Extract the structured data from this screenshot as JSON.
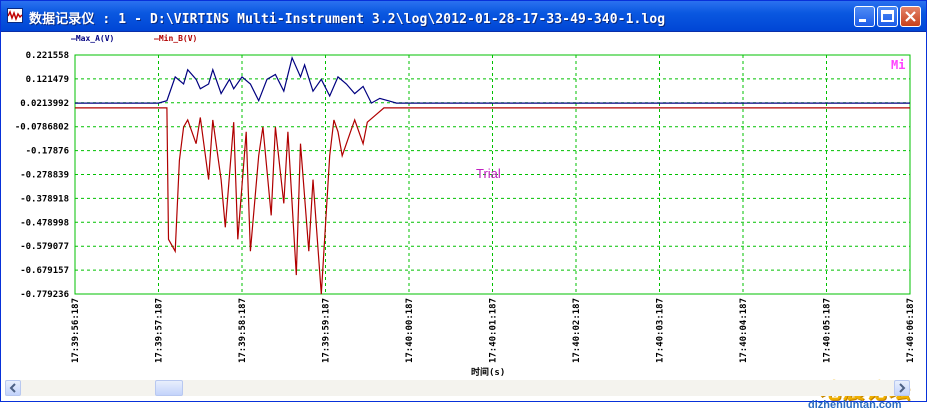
{
  "window": {
    "title": "数据记录仪 : 1 - D:\\VIRTINS Multi-Instrument 3.2\\log\\2012-01-28-17-33-49-340-1.log",
    "minimize_icon": "minimize-icon",
    "maximize_icon": "maximize-icon",
    "close_icon": "close-icon"
  },
  "legend": {
    "series_a": "—Max_A(V)",
    "series_b": "—Min_B(V)"
  },
  "plot": {
    "trial_text": "Trial",
    "corner_mark": "Mi",
    "xlabel": "时间(s)"
  },
  "watermark": {
    "text": "地震论坛",
    "url": "dizhenluntan.com"
  },
  "chart_data": {
    "type": "line",
    "xlabel": "时间(s)",
    "ylabel": "",
    "ylim": [
      -0.779236,
      0.221558
    ],
    "xlim": [
      0,
      10
    ],
    "grid": true,
    "y_ticks": [
      "0.221558",
      "0.121479",
      "0.0213992",
      "-0.0786802",
      "-0.17876",
      "-0.278839",
      "-0.378918",
      "-0.478998",
      "-0.579077",
      "-0.679157",
      "-0.779236"
    ],
    "x_ticks": [
      "17:39:56:187",
      "17:39:57:187",
      "17:39:58:187",
      "17:39:59:187",
      "17:40:00:187",
      "17:40:01:187",
      "17:40:02:187",
      "17:40:03:187",
      "17:40:04:187",
      "17:40:05:187",
      "17:40:06:187"
    ],
    "colors": {
      "series_a": "#000080",
      "series_b": "#b00000",
      "grid": "#00c000",
      "axis": "#00c000"
    },
    "series": [
      {
        "name": "Max_A(V)",
        "x": [
          0,
          0.5,
          1.0,
          1.1,
          1.2,
          1.3,
          1.35,
          1.45,
          1.5,
          1.6,
          1.65,
          1.75,
          1.85,
          1.9,
          2.0,
          2.1,
          2.2,
          2.3,
          2.4,
          2.5,
          2.6,
          2.7,
          2.75,
          2.85,
          2.95,
          3.05,
          3.15,
          3.25,
          3.35,
          3.45,
          3.55,
          3.65,
          3.75,
          3.85,
          4.0,
          5,
          6,
          7,
          8,
          9,
          10
        ],
        "values": [
          0.02,
          0.02,
          0.02,
          0.03,
          0.13,
          0.1,
          0.16,
          0.12,
          0.08,
          0.1,
          0.16,
          0.06,
          0.12,
          0.08,
          0.13,
          0.1,
          0.03,
          0.12,
          0.14,
          0.07,
          0.21,
          0.13,
          0.18,
          0.07,
          0.12,
          0.05,
          0.13,
          0.1,
          0.06,
          0.09,
          0.02,
          0.04,
          0.03,
          0.02,
          0.02,
          0.02,
          0.02,
          0.02,
          0.02,
          0.02,
          0.02
        ]
      },
      {
        "name": "Min_B(V)",
        "x": [
          0,
          1.1,
          1.12,
          1.2,
          1.25,
          1.3,
          1.35,
          1.45,
          1.5,
          1.6,
          1.65,
          1.75,
          1.8,
          1.9,
          1.95,
          2.05,
          2.1,
          2.2,
          2.25,
          2.35,
          2.4,
          2.5,
          2.55,
          2.65,
          2.7,
          2.8,
          2.85,
          2.95,
          3.05,
          3.1,
          3.15,
          3.2,
          3.3,
          3.35,
          3.45,
          3.5,
          3.6,
          3.7,
          3.8,
          4.0,
          5,
          6,
          7,
          8,
          9,
          10
        ],
        "values": [
          0.0,
          0.0,
          -0.55,
          -0.6,
          -0.22,
          -0.08,
          -0.05,
          -0.15,
          -0.04,
          -0.3,
          -0.05,
          -0.3,
          -0.5,
          -0.06,
          -0.55,
          -0.1,
          -0.6,
          -0.2,
          -0.08,
          -0.45,
          -0.08,
          -0.4,
          -0.1,
          -0.7,
          -0.15,
          -0.6,
          -0.3,
          -0.78,
          -0.2,
          -0.05,
          -0.1,
          -0.2,
          -0.1,
          -0.05,
          -0.15,
          -0.06,
          -0.03,
          0.0,
          0.0,
          0.0,
          0.0,
          0.0,
          0.0,
          0.0,
          0.0,
          0.0
        ]
      }
    ]
  }
}
